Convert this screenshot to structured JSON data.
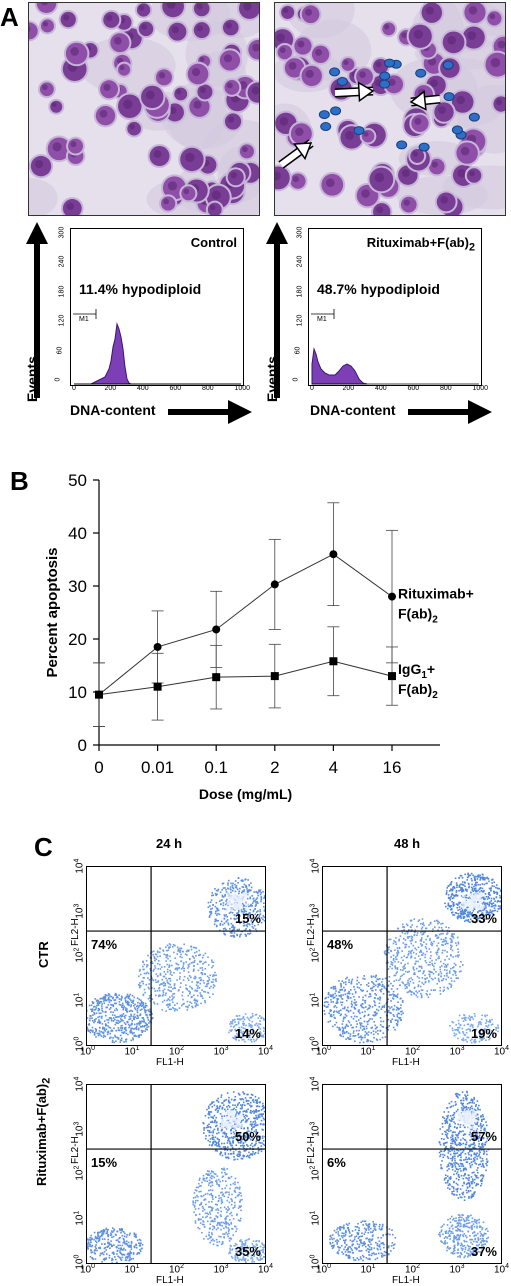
{
  "figure": {
    "panelA": {
      "letter": "A",
      "histograms": [
        {
          "title": "Control",
          "annotation": "11.4% hypodiploid",
          "gate": "M1",
          "y_ticks": [
            "0",
            "60",
            "120",
            "180",
            "240",
            "300"
          ],
          "x_ticks": [
            "0",
            "200",
            "400",
            "600",
            "800",
            "1000"
          ]
        },
        {
          "title": "Rituximab+F(ab)",
          "title_sub": "2",
          "annotation": "48.7% hypodiploid",
          "gate": "M1",
          "y_ticks": [
            "0",
            "60",
            "120",
            "180",
            "240",
            "300"
          ],
          "x_ticks": [
            "0",
            "200",
            "400",
            "600",
            "800",
            "1000"
          ]
        }
      ],
      "y_axis_word": "Events",
      "x_axis_word": "DNA-content"
    },
    "panelB": {
      "letter": "B"
    },
    "panelC": {
      "letter": "C",
      "col_heads": [
        "24 h",
        "48 h"
      ],
      "row_labels": [
        "CTR",
        "Rituximab+F(ab)"
      ],
      "row_label_sub": "2",
      "x_label": "FL1-H",
      "y_label": "FL2-H",
      "tick_base": "10",
      "tick_exps": [
        "0",
        "1",
        "2",
        "3",
        "4"
      ],
      "plots": [
        {
          "ul": "74%",
          "ur": "15%",
          "lr": "14%"
        },
        {
          "ul": "48%",
          "ur": "33%",
          "lr": "19%"
        },
        {
          "ul": "15%",
          "ur": "50%",
          "lr": "35%"
        },
        {
          "ul": "6%",
          "ur": "57%",
          "lr": "37%"
        }
      ]
    }
  },
  "chart_data": {
    "type": "line",
    "categories": [
      "0",
      "0.01",
      "0.1",
      "2",
      "4",
      "16"
    ],
    "xlabel": "Dose (mg/mL)",
    "ylabel": "Percent apoptosis",
    "ylim": [
      0,
      50
    ],
    "y_ticks": [
      0,
      10,
      20,
      30,
      40,
      50
    ],
    "series": [
      {
        "name": "Rituximab+F(ab)",
        "name_sub": "2",
        "values": [
          9.5,
          18.5,
          21.8,
          30.3,
          36,
          28
        ],
        "errors": [
          6,
          6.8,
          7.2,
          8.5,
          9.7,
          12.5
        ],
        "marker": "circle"
      },
      {
        "name": "IgG",
        "name_sub1": "1",
        "name_mid": "+F(ab)",
        "name_sub": "2",
        "values": [
          9.5,
          11,
          12.8,
          13,
          15.8,
          13
        ],
        "errors": [
          6,
          6.3,
          6,
          6,
          6.5,
          5.5
        ],
        "marker": "square"
      }
    ],
    "legend": "right, inline labels",
    "grid": false
  }
}
